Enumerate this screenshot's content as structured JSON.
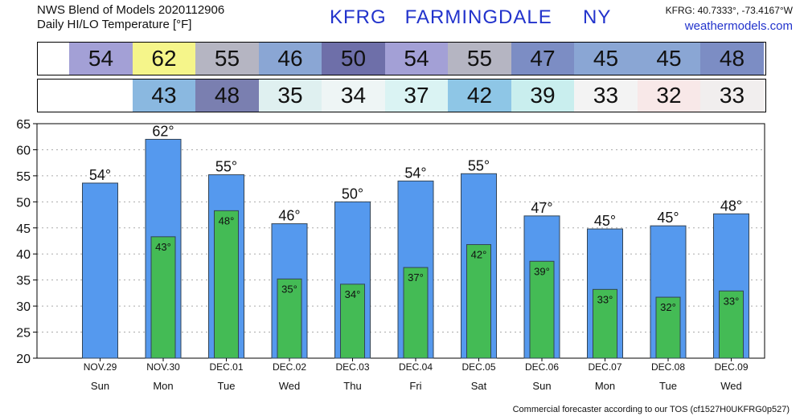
{
  "header": {
    "line1": "NWS Blend of Models 2020112906",
    "line2": "Daily HI/LO Temperature [°F]",
    "station": "KFRG   FARMINGDALE     NY",
    "coords": "KFRG: 40.7333°, -73.4167°W",
    "site": "weathermodels.com"
  },
  "footer": "Commercial forecaster according to our TOS (cf1527H0UKFRG0p527)",
  "colors": {
    "hi_bar": "#5599ee",
    "lo_bar": "#44bb55",
    "bar_edge": "#334455",
    "grid": "#aaaaaa"
  },
  "hi_strip": [
    {
      "value": "54",
      "color": "#a3a0d6"
    },
    {
      "value": "62",
      "color": "#f5f58a"
    },
    {
      "value": "55",
      "color": "#b5b5c2"
    },
    {
      "value": "46",
      "color": "#8aa6d4"
    },
    {
      "value": "50",
      "color": "#6e6fa9"
    },
    {
      "value": "54",
      "color": "#a3a0d6"
    },
    {
      "value": "55",
      "color": "#b5b5c2"
    },
    {
      "value": "47",
      "color": "#7c8dc4"
    },
    {
      "value": "45",
      "color": "#8aa6d4"
    },
    {
      "value": "45",
      "color": "#8aa6d4"
    },
    {
      "value": "48",
      "color": "#7c8dc4"
    }
  ],
  "lo_strip": [
    {
      "value": "",
      "color": "#ffffff"
    },
    {
      "value": "43",
      "color": "#8ab8e0"
    },
    {
      "value": "48",
      "color": "#7a7fb0"
    },
    {
      "value": "35",
      "color": "#dff0f0"
    },
    {
      "value": "34",
      "color": "#eef5f5"
    },
    {
      "value": "37",
      "color": "#daf3f3"
    },
    {
      "value": "42",
      "color": "#8ec6e6"
    },
    {
      "value": "39",
      "color": "#c9eeee"
    },
    {
      "value": "33",
      "color": "#f3f3f3"
    },
    {
      "value": "32",
      "color": "#f8e8e8"
    },
    {
      "value": "33",
      "color": "#f1eeee"
    }
  ],
  "chart_data": {
    "type": "bar",
    "categories": [
      "NOV.29",
      "NOV.30",
      "DEC.01",
      "DEC.02",
      "DEC.03",
      "DEC.04",
      "DEC.05",
      "DEC.06",
      "DEC.07",
      "DEC.08",
      "DEC.09"
    ],
    "days": [
      "Sun",
      "Mon",
      "Tue",
      "Wed",
      "Thu",
      "Fri",
      "Sat",
      "Sun",
      "Mon",
      "Tue",
      "Wed"
    ],
    "series": [
      {
        "values": [
          53.6,
          62.0,
          55.2,
          45.8,
          50.0,
          54.0,
          55.4,
          47.3,
          44.8,
          45.4,
          47.7
        ],
        "labels": [
          "54°",
          "62°",
          "55°",
          "46°",
          "50°",
          "54°",
          "55°",
          "47°",
          "45°",
          "45°",
          "48°"
        ]
      },
      {
        "values": [
          null,
          43.3,
          48.3,
          35.2,
          34.2,
          37.4,
          41.8,
          38.6,
          33.2,
          31.7,
          32.9
        ],
        "labels": [
          "",
          "43°",
          "48°",
          "35°",
          "34°",
          "37°",
          "42°",
          "39°",
          "33°",
          "32°",
          "33°"
        ]
      }
    ],
    "ylim": [
      20,
      65
    ],
    "yticks": [
      20,
      25,
      30,
      35,
      40,
      45,
      50,
      55,
      60,
      65
    ],
    "grid": true
  }
}
